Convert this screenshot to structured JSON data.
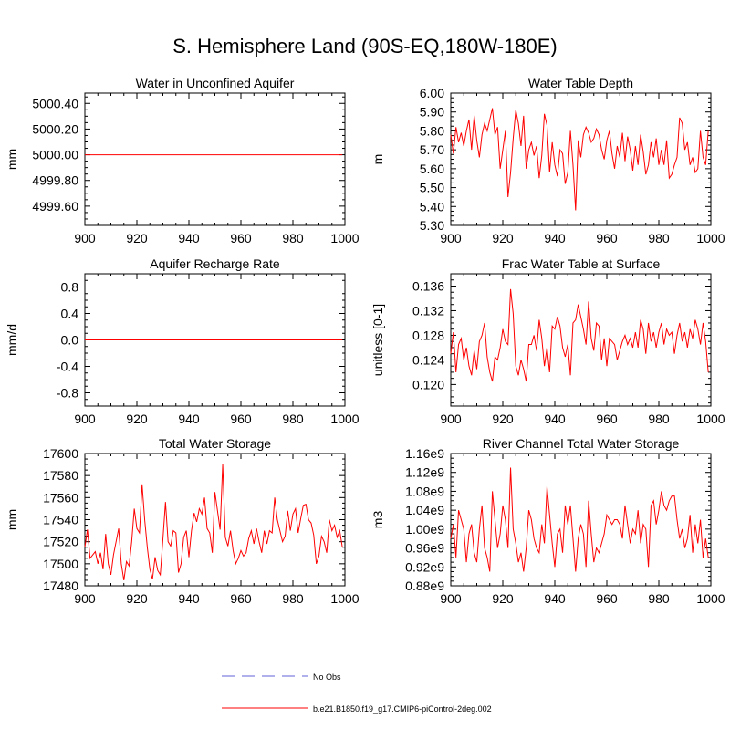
{
  "title": "S. Hemisphere Land (90S-EQ,180W-180E)",
  "colors": {
    "series": "#ff0000",
    "obs": "#8080e0",
    "axis": "#000000"
  },
  "legend": [
    {
      "label": "No Obs",
      "style": "dashed",
      "color": "#8080e0"
    },
    {
      "label": "b.e21.B1850.f19_g17.CMIP6-piControl-2deg.002",
      "style": "solid",
      "color": "#ff0000"
    }
  ],
  "chart_data": [
    {
      "type": "line",
      "title": "Water in Unconfined Aquifer",
      "ylabel": "mm",
      "xlim": [
        900,
        1000
      ],
      "xticks": [
        900,
        920,
        940,
        960,
        980,
        1000
      ],
      "ylim": [
        4999.45,
        5000.48
      ],
      "yticks": [
        4999.6,
        4999.8,
        5000.0,
        5000.2,
        5000.4
      ],
      "ytick_labels": [
        "4999.60",
        "4999.80",
        "5000.00",
        "5000.20",
        "5000.40"
      ],
      "x_start": 900,
      "x_step": 1,
      "values": [
        5000.0,
        5000.0,
        5000.0,
        5000.0,
        5000.0,
        5000.0,
        5000.0,
        5000.0,
        5000.0,
        5000.0,
        5000.0,
        5000.0,
        5000.0,
        5000.0,
        5000.0,
        5000.0,
        5000.0,
        5000.0,
        5000.0,
        5000.0,
        5000.0,
        5000.0,
        5000.0,
        5000.0,
        5000.0,
        5000.0,
        5000.0,
        5000.0,
        5000.0,
        5000.0,
        5000.0,
        5000.0,
        5000.0,
        5000.0,
        5000.0,
        5000.0,
        5000.0,
        5000.0,
        5000.0,
        5000.0,
        5000.0,
        5000.0,
        5000.0,
        5000.0,
        5000.0,
        5000.0,
        5000.0,
        5000.0,
        5000.0,
        5000.0,
        5000.0,
        5000.0,
        5000.0,
        5000.0,
        5000.0,
        5000.0,
        5000.0,
        5000.0,
        5000.0,
        5000.0,
        5000.0,
        5000.0,
        5000.0,
        5000.0,
        5000.0,
        5000.0,
        5000.0,
        5000.0,
        5000.0,
        5000.0,
        5000.0,
        5000.0,
        5000.0,
        5000.0,
        5000.0,
        5000.0,
        5000.0,
        5000.0,
        5000.0,
        5000.0,
        5000.0,
        5000.0,
        5000.0,
        5000.0,
        5000.0,
        5000.0,
        5000.0,
        5000.0,
        5000.0,
        5000.0,
        5000.0,
        5000.0,
        5000.0,
        5000.0,
        5000.0,
        5000.0,
        5000.0,
        5000.0,
        5000.0,
        5000.0
      ]
    },
    {
      "type": "line",
      "title": "Water Table Depth",
      "ylabel": "m",
      "xlim": [
        900,
        1000
      ],
      "xticks": [
        900,
        920,
        940,
        960,
        980,
        1000
      ],
      "ylim": [
        5.3,
        6.0
      ],
      "yticks": [
        5.3,
        5.4,
        5.5,
        5.6,
        5.7,
        5.8,
        5.9,
        6.0
      ],
      "ytick_labels": [
        "5.30",
        "5.40",
        "5.50",
        "5.60",
        "5.70",
        "5.80",
        "5.90",
        "6.00"
      ],
      "x_start": 900,
      "x_step": 1,
      "values": [
        5.78,
        5.68,
        5.82,
        5.74,
        5.79,
        5.72,
        5.8,
        5.86,
        5.7,
        5.88,
        5.75,
        5.66,
        5.78,
        5.84,
        5.8,
        5.86,
        5.92,
        5.78,
        5.82,
        5.6,
        5.7,
        5.8,
        5.45,
        5.58,
        5.76,
        5.91,
        5.84,
        5.72,
        5.88,
        5.6,
        5.7,
        5.74,
        5.67,
        5.72,
        5.55,
        5.67,
        5.89,
        5.83,
        5.58,
        5.74,
        5.62,
        5.56,
        5.7,
        5.68,
        5.52,
        5.58,
        5.8,
        5.62,
        5.38,
        5.75,
        5.66,
        5.78,
        5.82,
        5.79,
        5.74,
        5.76,
        5.81,
        5.78,
        5.7,
        5.65,
        5.75,
        5.8,
        5.68,
        5.6,
        5.72,
        5.66,
        5.79,
        5.64,
        5.77,
        5.7,
        5.59,
        5.72,
        5.62,
        5.78,
        5.69,
        5.57,
        5.62,
        5.74,
        5.66,
        5.76,
        5.62,
        5.7,
        5.62,
        5.75,
        5.55,
        5.57,
        5.62,
        5.66,
        5.87,
        5.84,
        5.7,
        5.74,
        5.62,
        5.66,
        5.58,
        5.6,
        5.8,
        5.66,
        5.62,
        5.8
      ]
    },
    {
      "type": "line",
      "title": "Aquifer Recharge Rate",
      "ylabel": "mm/d",
      "xlim": [
        900,
        1000
      ],
      "xticks": [
        900,
        920,
        940,
        960,
        980,
        1000
      ],
      "ylim": [
        -1.0,
        1.0
      ],
      "yticks": [
        -0.8,
        -0.4,
        0.0,
        0.4,
        0.8
      ],
      "ytick_labels": [
        "-0.8",
        "-0.4",
        "0.0",
        "0.4",
        "0.8"
      ],
      "x_start": 900,
      "x_step": 1,
      "values": [
        0.0,
        0.0,
        0.0,
        0.0,
        0.0,
        0.0,
        0.0,
        0.0,
        0.0,
        0.0,
        0.0,
        0.0,
        0.0,
        0.0,
        0.0,
        0.0,
        0.0,
        0.0,
        0.0,
        0.0,
        0.0,
        0.0,
        0.0,
        0.0,
        0.0,
        0.0,
        0.0,
        0.0,
        0.0,
        0.0,
        0.0,
        0.0,
        0.0,
        0.0,
        0.0,
        0.0,
        0.0,
        0.0,
        0.0,
        0.0,
        0.0,
        0.0,
        0.0,
        0.0,
        0.0,
        0.0,
        0.0,
        0.0,
        0.0,
        0.0,
        0.0,
        0.0,
        0.0,
        0.0,
        0.0,
        0.0,
        0.0,
        0.0,
        0.0,
        0.0,
        0.0,
        0.0,
        0.0,
        0.0,
        0.0,
        0.0,
        0.0,
        0.0,
        0.0,
        0.0,
        0.0,
        0.0,
        0.0,
        0.0,
        0.0,
        0.0,
        0.0,
        0.0,
        0.0,
        0.0,
        0.0,
        0.0,
        0.0,
        0.0,
        0.0,
        0.0,
        0.0,
        0.0,
        0.0,
        0.0,
        0.0,
        0.0,
        0.0,
        0.0,
        0.0,
        0.0,
        0.0,
        0.0,
        0.0,
        0.0
      ]
    },
    {
      "type": "line",
      "title": "Frac Water Table at Surface",
      "ylabel": "unitless [0-1]",
      "xlim": [
        900,
        1000
      ],
      "xticks": [
        900,
        920,
        940,
        960,
        980,
        1000
      ],
      "ylim": [
        0.1165,
        0.138
      ],
      "yticks": [
        0.12,
        0.124,
        0.128,
        0.132,
        0.136
      ],
      "ytick_labels": [
        "0.120",
        "0.124",
        "0.128",
        "0.132",
        "0.136"
      ],
      "x_start": 900,
      "x_step": 1,
      "values": [
        0.125,
        0.1285,
        0.122,
        0.1265,
        0.1275,
        0.124,
        0.126,
        0.123,
        0.1215,
        0.1255,
        0.1225,
        0.127,
        0.128,
        0.13,
        0.1245,
        0.122,
        0.1205,
        0.1245,
        0.124,
        0.126,
        0.129,
        0.127,
        0.1265,
        0.1355,
        0.1315,
        0.123,
        0.1215,
        0.124,
        0.1225,
        0.1205,
        0.1265,
        0.1265,
        0.128,
        0.1255,
        0.1305,
        0.1275,
        0.123,
        0.126,
        0.122,
        0.1295,
        0.129,
        0.131,
        0.1295,
        0.126,
        0.1245,
        0.1265,
        0.1215,
        0.13,
        0.1305,
        0.133,
        0.131,
        0.129,
        0.1265,
        0.1335,
        0.1275,
        0.1255,
        0.13,
        0.1295,
        0.124,
        0.1275,
        0.123,
        0.1275,
        0.127,
        0.1265,
        0.124,
        0.1255,
        0.127,
        0.128,
        0.1265,
        0.1275,
        0.126,
        0.1285,
        0.126,
        0.1305,
        0.129,
        0.125,
        0.13,
        0.127,
        0.1285,
        0.126,
        0.1285,
        0.13,
        0.1265,
        0.129,
        0.128,
        0.1285,
        0.125,
        0.128,
        0.13,
        0.127,
        0.1285,
        0.126,
        0.129,
        0.1275,
        0.1305,
        0.129,
        0.1265,
        0.13,
        0.127,
        0.122
      ]
    },
    {
      "type": "line",
      "title": "Total Water Storage",
      "ylabel": "mm",
      "xlim": [
        900,
        1000
      ],
      "xticks": [
        900,
        920,
        940,
        960,
        980,
        1000
      ],
      "ylim": [
        17480,
        17600
      ],
      "yticks": [
        17480,
        17500,
        17520,
        17540,
        17560,
        17580,
        17600
      ],
      "ytick_labels": [
        "17480",
        "17500",
        "17520",
        "17540",
        "17560",
        "17580",
        "17600"
      ],
      "x_start": 900,
      "x_step": 1,
      "values": [
        17515,
        17531,
        17505,
        17508,
        17511,
        17500,
        17510,
        17495,
        17527,
        17500,
        17490,
        17508,
        17520,
        17532,
        17500,
        17485,
        17502,
        17498,
        17520,
        17550,
        17532,
        17528,
        17572,
        17540,
        17515,
        17495,
        17486,
        17506,
        17494,
        17490,
        17522,
        17556,
        17520,
        17516,
        17530,
        17528,
        17492,
        17500,
        17524,
        17530,
        17506,
        17530,
        17546,
        17538,
        17550,
        17545,
        17560,
        17532,
        17528,
        17510,
        17565,
        17548,
        17531,
        17590,
        17524,
        17516,
        17530,
        17512,
        17500,
        17505,
        17512,
        17507,
        17510,
        17523,
        17530,
        17518,
        17532,
        17520,
        17510,
        17530,
        17518,
        17530,
        17528,
        17560,
        17540,
        17530,
        17520,
        17525,
        17548,
        17530,
        17545,
        17550,
        17528,
        17541,
        17553,
        17554,
        17540,
        17537,
        17526,
        17500,
        17507,
        17525,
        17520,
        17510,
        17540,
        17530,
        17535,
        17524,
        17530,
        17515
      ]
    },
    {
      "type": "line",
      "title": "River Channel Total Water Storage",
      "ylabel": "m3",
      "xlim": [
        900,
        1000
      ],
      "xticks": [
        900,
        920,
        940,
        960,
        980,
        1000
      ],
      "ylim": [
        880000000.0,
        1160000000.0
      ],
      "yticks": [
        880000000.0,
        920000000.0,
        960000000.0,
        1000000000.0,
        1040000000.0,
        1080000000.0,
        1120000000.0,
        1160000000.0
      ],
      "ytick_labels": [
        "0.88e9",
        "0.92e9",
        "0.96e9",
        "1.00e9",
        "1.04e9",
        "1.08e9",
        "1.12e9",
        "1.16e9"
      ],
      "x_start": 900,
      "x_step": 1,
      "values": [
        980000000.0,
        1010000000.0,
        940000000.0,
        1040000000.0,
        1020000000.0,
        1000000000.0,
        930000000.0,
        990000000.0,
        1010000000.0,
        950000000.0,
        930000000.0,
        1000000000.0,
        1050000000.0,
        960000000.0,
        940000000.0,
        910000000.0,
        1080000000.0,
        1020000000.0,
        960000000.0,
        990000000.0,
        1050000000.0,
        1020000000.0,
        960000000.0,
        1130000000.0,
        1000000000.0,
        970000000.0,
        930000000.0,
        950000000.0,
        910000000.0,
        960000000.0,
        1040000000.0,
        1020000000.0,
        980000000.0,
        960000000.0,
        950000000.0,
        1010000000.0,
        970000000.0,
        1090000000.0,
        1030000000.0,
        970000000.0,
        920000000.0,
        990000000.0,
        1000000000.0,
        950000000.0,
        1050000000.0,
        1010000000.0,
        1050000000.0,
        980000000.0,
        910000000.0,
        980000000.0,
        1010000000.0,
        990000000.0,
        920000000.0,
        1060000000.0,
        990000000.0,
        930000000.0,
        960000000.0,
        950000000.0,
        970000000.0,
        990000000.0,
        1030000000.0,
        1020000000.0,
        1010000000.0,
        1020000000.0,
        1020000000.0,
        1010000000.0,
        980000000.0,
        1050000000.0,
        1010000000.0,
        970000000.0,
        1000000000.0,
        990000000.0,
        1040000000.0,
        970000000.0,
        1010000000.0,
        1000000000.0,
        920000000.0,
        1050000000.0,
        1060000000.0,
        1010000000.0,
        1040000000.0,
        1080000000.0,
        1050000000.0,
        1040000000.0,
        1060000000.0,
        1070000000.0,
        1070000000.0,
        1020000000.0,
        980000000.0,
        1000000000.0,
        960000000.0,
        980000000.0,
        1030000000.0,
        950000000.0,
        1010000000.0,
        970000000.0,
        1020000000.0,
        940000000.0,
        980000000.0,
        940000000.0
      ]
    }
  ]
}
